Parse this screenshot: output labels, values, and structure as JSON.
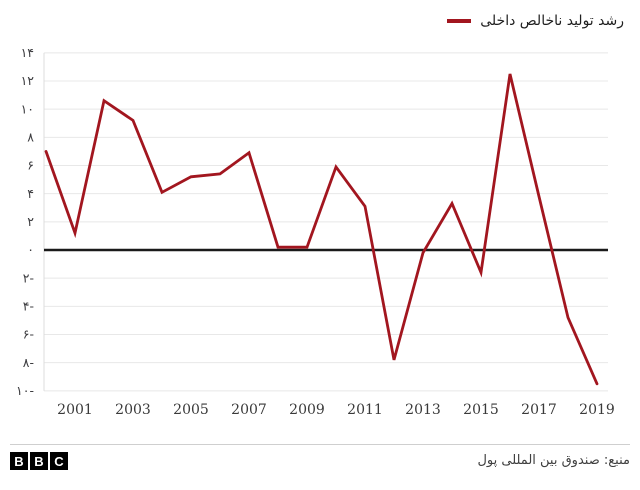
{
  "legend": {
    "label": "رشد تولید ناخالص داخلی"
  },
  "footer": {
    "logo_letters": [
      "B",
      "B",
      "C"
    ],
    "source": "منبع: صندوق بین المللی پول"
  },
  "colors": {
    "line": "#a2161f",
    "grid": "#e8e8e8",
    "zero_line": "#1a1a1a",
    "axis_line": "#dcdcdc",
    "y_axis_text": "#3d3d40",
    "x_axis_text": "#3a3a3a",
    "background": "#ffffff",
    "divider": "#cfcfcf",
    "logo_bg": "#000000",
    "logo_text": "#ffffff"
  },
  "chart_data": {
    "type": "line",
    "title": "",
    "xlabel": "",
    "ylabel": "",
    "x": [
      2000,
      2001,
      2002,
      2003,
      2004,
      2005,
      2006,
      2007,
      2008,
      2009,
      2010,
      2011,
      2012,
      2013,
      2014,
      2015,
      2016,
      2017,
      2018,
      2019
    ],
    "series": [
      {
        "name": "رشد تولید ناخالص داخلی",
        "color": "#a2161f",
        "values": [
          7.0,
          1.2,
          10.6,
          9.2,
          4.1,
          5.2,
          5.4,
          6.9,
          0.2,
          0.2,
          5.9,
          3.1,
          -7.8,
          -0.2,
          3.3,
          -1.6,
          12.5,
          3.8,
          -4.8,
          -9.5
        ]
      }
    ],
    "x_tick_years": [
      2001,
      2003,
      2005,
      2007,
      2009,
      2011,
      2013,
      2015,
      2017,
      2019
    ],
    "x_tick_labels": [
      "2001",
      "2003",
      "2005",
      "2007",
      "2009",
      "2011",
      "2013",
      "2015",
      "2017",
      "2019"
    ],
    "y_ticks": [
      14,
      12,
      10,
      8,
      6,
      4,
      2,
      0,
      -2,
      -4,
      -6,
      -8,
      -10
    ],
    "y_tick_labels": [
      "۱۴",
      "۱۲",
      "۱۰",
      "۸",
      "۶",
      "۴",
      "۲",
      "۰",
      "۲-",
      "۴-",
      "۶-",
      "۸-",
      "۱۰-"
    ],
    "xlim": [
      2000,
      2019
    ],
    "ylim": [
      -10,
      14
    ],
    "grid": true,
    "zero_baseline": true,
    "legend_position": "top-right"
  }
}
